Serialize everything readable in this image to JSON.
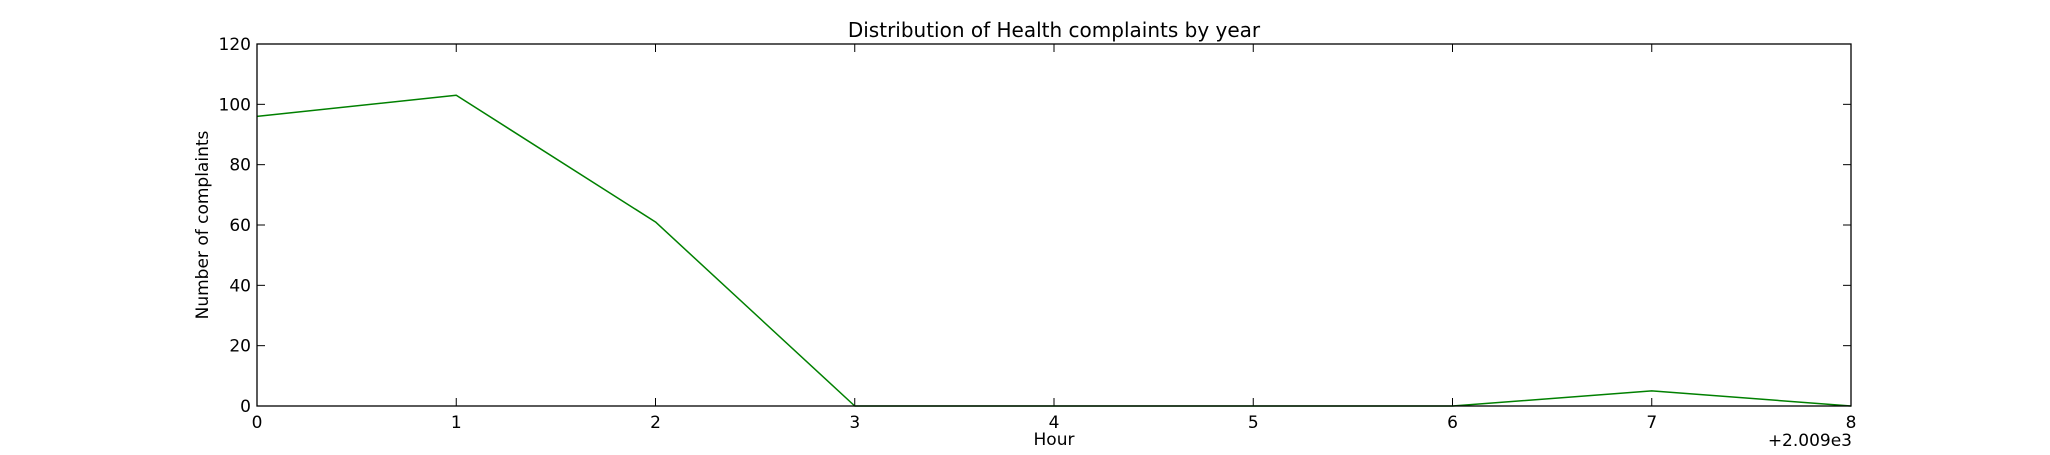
{
  "chart_data": {
    "type": "line",
    "title": "Distribution of  Health complaints by year",
    "xlabel": "Hour",
    "ylabel": "Number of complaints",
    "x_offset_label": "+2.009e3",
    "x": [
      0,
      1,
      2,
      3,
      4,
      5,
      6,
      7,
      8
    ],
    "x_ticks": [
      "0",
      "1",
      "2",
      "3",
      "4",
      "5",
      "6",
      "7",
      "8"
    ],
    "y_ticks": [
      "0",
      "20",
      "40",
      "60",
      "80",
      "100",
      "120"
    ],
    "xlim": [
      0,
      8
    ],
    "ylim": [
      0,
      120
    ],
    "grid": false,
    "series": [
      {
        "color": "#008000",
        "values": [
          96,
          103,
          61,
          0,
          0,
          0,
          0,
          5,
          0
        ]
      }
    ]
  }
}
